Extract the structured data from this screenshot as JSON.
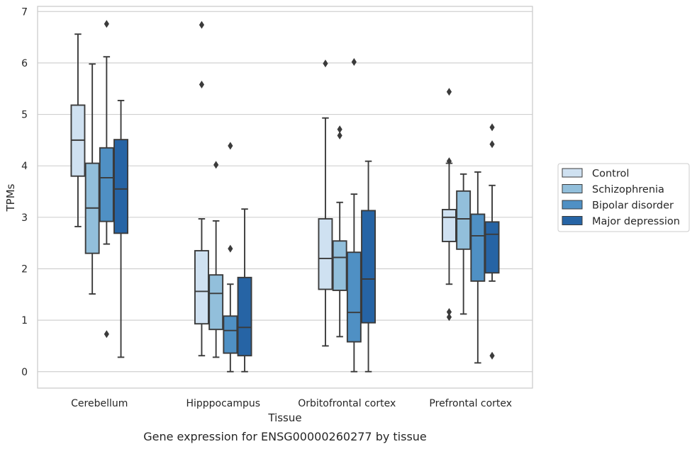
{
  "caption": "Gene expression for ENSG00000260277 by tissue",
  "chart_data": {
    "type": "boxplot",
    "xlabel": "Tissue",
    "ylabel": "TPMs",
    "ylim": [
      -0.32,
      7.1
    ],
    "yticks": [
      0,
      1,
      2,
      3,
      4,
      5,
      6,
      7
    ],
    "grid": "horizontal",
    "legend_position": "right",
    "categories": [
      "Cerebellum",
      "Hipppocampus",
      "Orbitofrontal cortex",
      "Prefrontal cortex"
    ],
    "series": [
      {
        "name": "Control",
        "color": "#cfe1f1",
        "boxes": [
          {
            "whislo": 2.82,
            "q1": 3.8,
            "med": 4.5,
            "q3": 5.18,
            "whishi": 6.56,
            "fliers": []
          },
          {
            "whislo": 0.31,
            "q1": 0.93,
            "med": 1.56,
            "q3": 2.35,
            "whishi": 2.97,
            "fliers": [
              5.58,
              6.74
            ]
          },
          {
            "whislo": 0.5,
            "q1": 1.6,
            "med": 2.2,
            "q3": 2.97,
            "whishi": 4.93,
            "fliers": [
              5.99
            ]
          },
          {
            "whislo": 1.7,
            "q1": 2.53,
            "med": 3.0,
            "q3": 3.15,
            "whishi": 4.05,
            "fliers": [
              1.06,
              1.16,
              4.09,
              5.44
            ]
          }
        ]
      },
      {
        "name": "Schizophrenia",
        "color": "#92bfdb",
        "boxes": [
          {
            "whislo": 1.51,
            "q1": 2.3,
            "med": 3.18,
            "q3": 4.05,
            "whishi": 5.98,
            "fliers": []
          },
          {
            "whislo": 0.28,
            "q1": 0.82,
            "med": 1.52,
            "q3": 1.88,
            "whishi": 2.93,
            "fliers": [
              4.02
            ]
          },
          {
            "whislo": 0.68,
            "q1": 1.58,
            "med": 2.22,
            "q3": 2.54,
            "whishi": 3.29,
            "fliers": [
              4.59,
              4.71
            ]
          },
          {
            "whislo": 1.12,
            "q1": 2.38,
            "med": 2.97,
            "q3": 3.51,
            "whishi": 3.84,
            "fliers": []
          }
        ]
      },
      {
        "name": "Bipolar disorder",
        "color": "#4f90c4",
        "boxes": [
          {
            "whislo": 2.48,
            "q1": 2.92,
            "med": 3.77,
            "q3": 4.35,
            "whishi": 6.12,
            "fliers": [
              0.73,
              6.76
            ]
          },
          {
            "whislo": 0.0,
            "q1": 0.36,
            "med": 0.8,
            "q3": 1.08,
            "whishi": 1.7,
            "fliers": [
              2.39,
              4.39
            ]
          },
          {
            "whislo": 0.0,
            "q1": 0.58,
            "med": 1.15,
            "q3": 2.32,
            "whishi": 3.45,
            "fliers": [
              6.02
            ]
          },
          {
            "whislo": 0.17,
            "q1": 1.76,
            "med": 2.64,
            "q3": 3.06,
            "whishi": 3.88,
            "fliers": []
          }
        ]
      },
      {
        "name": "Major depression",
        "color": "#2664a5",
        "boxes": [
          {
            "whislo": 0.28,
            "q1": 2.69,
            "med": 3.55,
            "q3": 4.51,
            "whishi": 5.27,
            "fliers": []
          },
          {
            "whislo": 0.0,
            "q1": 0.31,
            "med": 0.86,
            "q3": 1.83,
            "whishi": 3.16,
            "fliers": []
          },
          {
            "whislo": 0.0,
            "q1": 0.95,
            "med": 1.8,
            "q3": 3.13,
            "whishi": 4.09,
            "fliers": []
          },
          {
            "whislo": 1.76,
            "q1": 1.92,
            "med": 2.67,
            "q3": 2.91,
            "whishi": 3.62,
            "fliers": [
              0.31,
              4.42,
              4.75
            ]
          }
        ]
      }
    ]
  }
}
